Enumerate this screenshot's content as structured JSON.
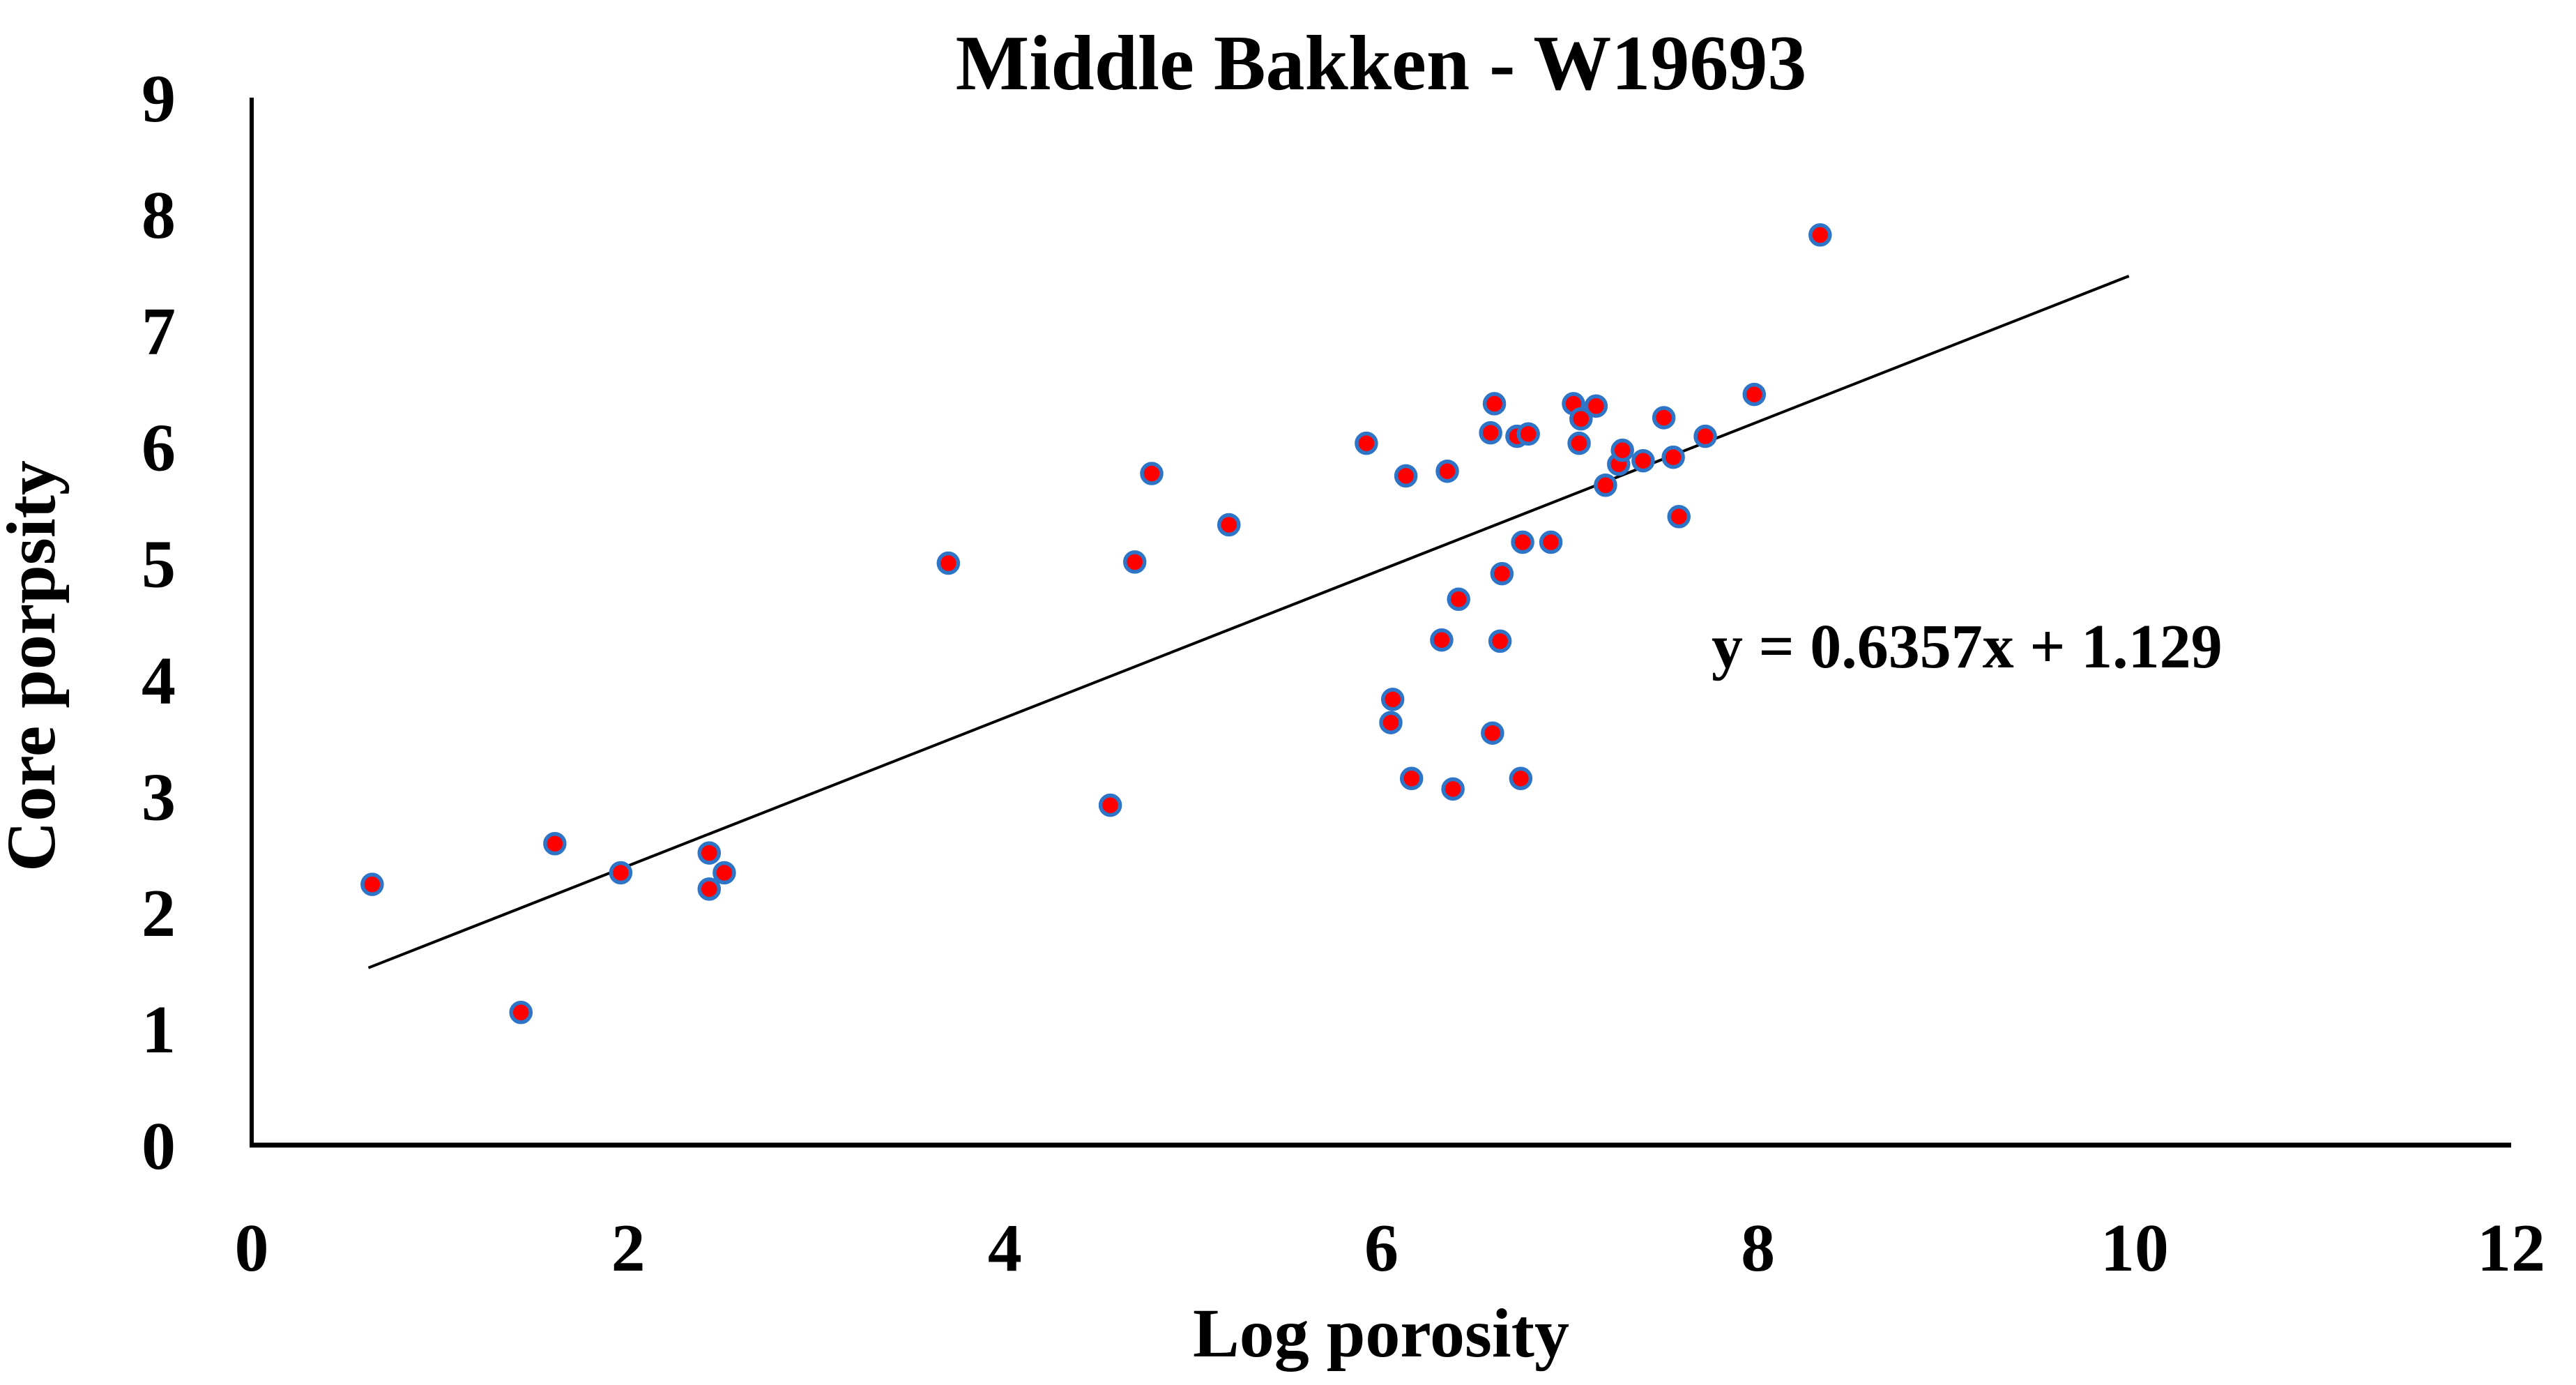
{
  "chart_data": {
    "type": "scatter",
    "title": "Middle Bakken - W19693",
    "xlabel": "Log porosity",
    "ylabel": "Core porpsity",
    "xlim": [
      0,
      12
    ],
    "ylim": [
      0,
      9
    ],
    "x_ticks": [
      "0",
      "2",
      "4",
      "6",
      "8",
      "10",
      "12"
    ],
    "x_tick_values": [
      0,
      2,
      4,
      6,
      8,
      10,
      12
    ],
    "y_ticks": [
      "0",
      "1",
      "2",
      "3",
      "4",
      "5",
      "6",
      "7",
      "8",
      "9"
    ],
    "y_tick_values": [
      0,
      1,
      2,
      3,
      4,
      5,
      6,
      7,
      8,
      9
    ],
    "grid": false,
    "legend_position": "none",
    "series": [
      {
        "name": "core-porosity-vs-log-porosity",
        "marker": "circle",
        "marker_fill": "#fe0000",
        "marker_border": "#2e75c8",
        "points": [
          [
            0.64,
            2.24
          ],
          [
            1.43,
            1.14
          ],
          [
            1.61,
            2.59
          ],
          [
            1.96,
            2.34
          ],
          [
            2.43,
            2.51
          ],
          [
            2.51,
            2.34
          ],
          [
            2.43,
            2.2
          ],
          [
            3.7,
            5.0
          ],
          [
            4.56,
            2.92
          ],
          [
            4.69,
            5.01
          ],
          [
            4.78,
            5.77
          ],
          [
            5.19,
            5.33
          ],
          [
            5.92,
            6.03
          ],
          [
            6.05,
            3.63
          ],
          [
            6.06,
            3.83
          ],
          [
            6.13,
            5.75
          ],
          [
            6.16,
            3.15
          ],
          [
            6.32,
            4.34
          ],
          [
            6.35,
            5.79
          ],
          [
            6.38,
            3.06
          ],
          [
            6.41,
            4.69
          ],
          [
            6.58,
            6.12
          ],
          [
            6.59,
            3.54
          ],
          [
            6.6,
            6.37
          ],
          [
            6.63,
            4.33
          ],
          [
            6.64,
            4.91
          ],
          [
            6.72,
            6.09
          ],
          [
            6.74,
            3.15
          ],
          [
            6.75,
            5.18
          ],
          [
            6.78,
            6.11
          ],
          [
            6.9,
            5.18
          ],
          [
            7.02,
            6.37
          ],
          [
            7.05,
            6.03
          ],
          [
            7.06,
            6.24
          ],
          [
            7.14,
            6.35
          ],
          [
            7.19,
            5.67
          ],
          [
            7.26,
            5.85
          ],
          [
            7.28,
            5.97
          ],
          [
            7.39,
            5.88
          ],
          [
            7.5,
            6.25
          ],
          [
            7.55,
            5.91
          ],
          [
            7.58,
            5.4
          ],
          [
            7.72,
            6.09
          ],
          [
            7.98,
            6.45
          ],
          [
            8.33,
            7.82
          ]
        ]
      }
    ],
    "trendline": {
      "equation_label": "y = 0.6357x + 1.129",
      "slope": 0.6357,
      "intercept": 1.129,
      "x_start": 0.62,
      "x_end": 9.97,
      "color": "#000000"
    }
  },
  "colors": {
    "background": "#ffffff",
    "axis": "#000000",
    "text": "#000000",
    "marker_fill": "#fe0000",
    "marker_border": "#2e75c8",
    "trendline": "#000000"
  }
}
